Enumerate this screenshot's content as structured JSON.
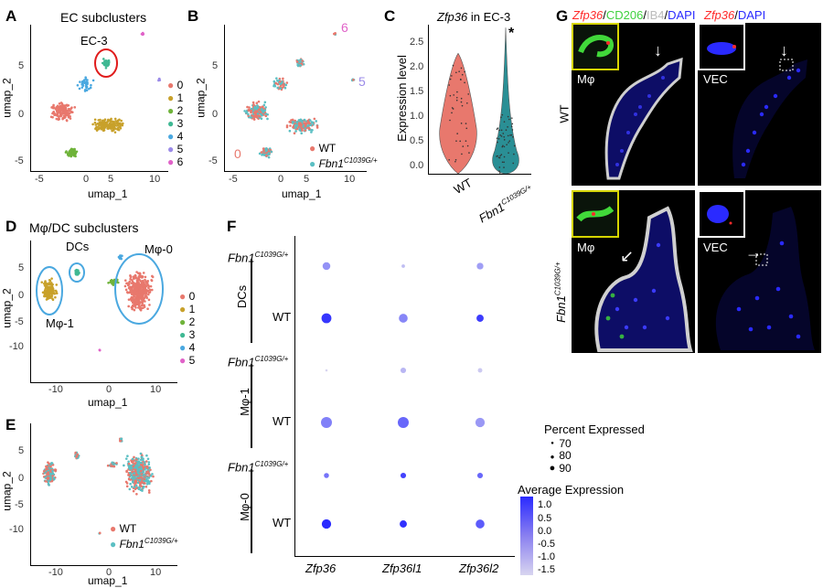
{
  "panels": {
    "A": {
      "letter": "A",
      "title": "EC subclusters",
      "cluster_label": "EC-3",
      "xlabel": "umap_1",
      "ylabel": "umap_2",
      "xticks": [
        "-5",
        "0",
        "5",
        "10"
      ],
      "yticks": [
        "5",
        "0",
        "-5"
      ],
      "legend": [
        {
          "label": "0",
          "color": "#e8786d"
        },
        {
          "label": "1",
          "color": "#c8a12b"
        },
        {
          "label": "2",
          "color": "#6fb33a"
        },
        {
          "label": "3",
          "color": "#3fb893"
        },
        {
          "label": "4",
          "color": "#4aa8e0"
        },
        {
          "label": "5",
          "color": "#9b8be8"
        },
        {
          "label": "6",
          "color": "#e062c8"
        }
      ]
    },
    "B": {
      "letter": "B",
      "xlabel": "umap_1",
      "ylabel": "umap_2",
      "xticks": [
        "-5",
        "0",
        "5",
        "10"
      ],
      "yticks": [
        "5",
        "0",
        "-5"
      ],
      "cluster_labels": [
        "6",
        "5",
        "0"
      ],
      "legend": [
        {
          "label": "WT",
          "color": "#e8786d"
        },
        {
          "label": "Fbn1",
          "sup": "C1039G/+",
          "color": "#5bbfc3"
        }
      ]
    },
    "C": {
      "letter": "C",
      "title_gene": "Zfp36",
      "title_rest": " in EC-3",
      "ylabel": "Expression level",
      "yticks": [
        "2.5",
        "2.0",
        "1.5",
        "1.0",
        "0.5",
        "0.0"
      ],
      "groups": [
        "WT",
        "Fbn1"
      ],
      "group_sup": "C1039G/+",
      "sig": "*"
    },
    "D": {
      "letter": "D",
      "title": "Mφ/DC subclusters",
      "labels": [
        "DCs",
        "Mφ-0",
        "Mφ-1"
      ],
      "xlabel": "umap_1",
      "ylabel": "umap_2",
      "xticks": [
        "-10",
        "0",
        "10"
      ],
      "yticks": [
        "5",
        "0",
        "-5",
        "-10"
      ],
      "legend": [
        {
          "label": "0",
          "color": "#e8786d"
        },
        {
          "label": "1",
          "color": "#c8a12b"
        },
        {
          "label": "2",
          "color": "#6fb33a"
        },
        {
          "label": "3",
          "color": "#3fb893"
        },
        {
          "label": "4",
          "color": "#4aa8e0"
        },
        {
          "label": "5",
          "color": "#e062c8"
        }
      ]
    },
    "E": {
      "letter": "E",
      "xlabel": "umap_1",
      "ylabel": "umap_2",
      "xticks": [
        "-10",
        "0",
        "10"
      ],
      "yticks": [
        "5",
        "0",
        "-5",
        "-10"
      ],
      "legend": [
        {
          "label": "WT",
          "color": "#e8786d"
        },
        {
          "label": "Fbn1",
          "sup": "C1039G/+",
          "color": "#5bbfc3"
        }
      ]
    },
    "F": {
      "letter": "F",
      "percent_title": "Percent Expressed",
      "percent_sizes": [
        "70",
        "80",
        "90"
      ],
      "avg_title": "Average Expression",
      "avg_ticks": [
        "1.0",
        "0.5",
        "0.0",
        "-0.5",
        "-1.0",
        "-1.5"
      ]
    },
    "G": {
      "letter": "G",
      "hdr_left": [
        {
          "t": "Zfp36",
          "c": "#ff2b2b",
          "i": true
        },
        {
          "t": "/",
          "c": "#000",
          "i": false
        },
        {
          "t": "CD206",
          "c": "#3fd13f",
          "i": false
        },
        {
          "t": "/",
          "c": "#000",
          "i": false
        },
        {
          "t": "IB4",
          "c": "#bbbbbb",
          "i": false
        },
        {
          "t": "/",
          "c": "#000",
          "i": false
        },
        {
          "t": "DAPI",
          "c": "#2a2aff",
          "i": false
        }
      ],
      "hdr_right": [
        {
          "t": "Zfp36",
          "c": "#ff2b2b",
          "i": true
        },
        {
          "t": "/",
          "c": "#000",
          "i": false
        },
        {
          "t": "DAPI",
          "c": "#2a2aff",
          "i": false
        }
      ],
      "row_wt": "WT",
      "row_mut": "Fbn1",
      "row_mut_sup": "C1039G/+",
      "inset_mphi": "Mφ",
      "inset_vec": "VEC"
    }
  },
  "chart_data": [
    {
      "type": "violin",
      "title": "Zfp36 in EC-3",
      "ylabel": "Expression level",
      "ylim": [
        0,
        2.6
      ],
      "categories": [
        "WT",
        "Fbn1 C1039G/+"
      ],
      "significance": "*",
      "series": [
        {
          "name": "WT",
          "values": {
            "min": 0.0,
            "max": 2.1
          }
        },
        {
          "name": "Fbn1 C1039G/+",
          "values": {
            "min": 0.0,
            "max": 2.55
          }
        }
      ]
    },
    {
      "type": "scatter",
      "subtype": "dotplot",
      "x_categories": [
        "Zfp36",
        "Zfp36l1",
        "Zfp36l2"
      ],
      "y_categories": [
        {
          "group": "DCs",
          "genotype": "Fbn1 C1039G/+"
        },
        {
          "group": "DCs",
          "genotype": "WT"
        },
        {
          "group": "Mφ-1",
          "genotype": "Fbn1 C1039G/+"
        },
        {
          "group": "Mφ-1",
          "genotype": "WT"
        },
        {
          "group": "Mφ-0",
          "genotype": "Fbn1 C1039G/+"
        },
        {
          "group": "Mφ-0",
          "genotype": "WT"
        }
      ],
      "percent_expressed": [
        [
          82,
          66,
          78
        ],
        [
          90,
          86,
          80
        ],
        [
          62,
          74,
          70
        ],
        [
          94,
          94,
          88
        ],
        [
          72,
          74,
          74
        ],
        [
          88,
          80,
          86
        ]
      ],
      "average_expression": [
        [
          -0.4,
          -1.1,
          -0.6
        ],
        [
          1.1,
          -0.2,
          1.0
        ],
        [
          -1.5,
          -1.0,
          -1.3
        ],
        [
          -0.1,
          0.3,
          -0.5
        ],
        [
          0.1,
          0.9,
          0.3
        ],
        [
          1.3,
          1.2,
          0.5
        ]
      ],
      "legend": {
        "percent_expressed": [
          70,
          80,
          90
        ],
        "average_expression_range": [
          -1.5,
          1.3
        ]
      }
    }
  ]
}
